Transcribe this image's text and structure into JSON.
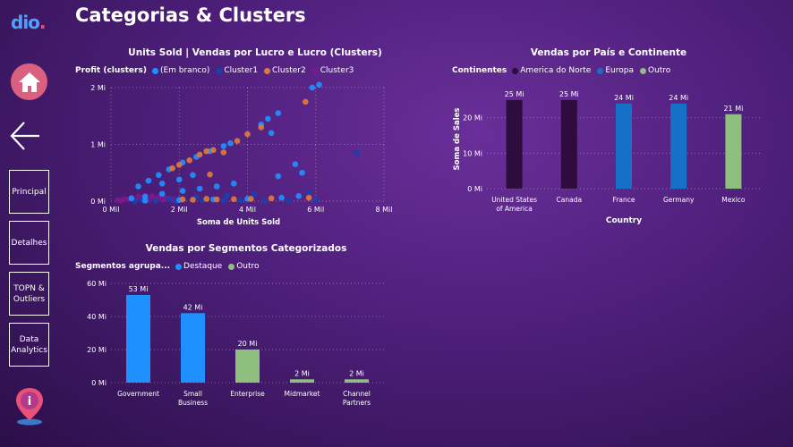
{
  "app": {
    "logo_text": "dio",
    "page_title": "Categorias & Clusters",
    "nav": [
      {
        "label": "Principal"
      },
      {
        "label": "Detalhes"
      },
      {
        "label": "TOPN & Outliers"
      },
      {
        "label": "Data Analytics"
      }
    ]
  },
  "colors": {
    "em_branco": "#1e90ff",
    "cluster1": "#1a3fb0",
    "cluster2": "#e07a3a",
    "cluster3": "#7a1a8a",
    "america_do_norte": "#2e0c3e",
    "europa": "#1670c8",
    "outro": "#8fbf7f",
    "destaque": "#1e90ff"
  },
  "chart_data": [
    {
      "id": "scatter",
      "type": "scatter",
      "title": "Units Sold | Vendas por Lucro e Lucro (Clusters)",
      "legend_title": "Profit (clusters)",
      "legend": [
        "(Em branco)",
        "Cluster1",
        "Cluster2",
        "Cluster3"
      ],
      "xlabel": "Soma de Units Sold",
      "ylabel": "",
      "x_ticks": [
        "0 Mil",
        "2 Mil",
        "4 Mil",
        "6 Mil",
        "8 Mil"
      ],
      "y_ticks": [
        "0 Mi",
        "1 Mi",
        "2 Mi"
      ],
      "xlim": [
        0,
        8000
      ],
      "ylim": [
        0,
        2000000
      ],
      "series": [
        {
          "name": "(Em branco)",
          "points": [
            [
              5900,
              2000000
            ],
            [
              6100,
              2050000
            ],
            [
              4900,
              1550000
            ],
            [
              4600,
              1450000
            ],
            [
              4400,
              1350000
            ],
            [
              3500,
              1020000
            ],
            [
              3300,
              970000
            ],
            [
              2900,
              880000
            ],
            [
              2500,
              780000
            ],
            [
              2100,
              680000
            ],
            [
              1700,
              560000
            ],
            [
              1400,
              460000
            ],
            [
              1100,
              360000
            ],
            [
              800,
              260000
            ],
            [
              5400,
              650000
            ],
            [
              5600,
              500000
            ],
            [
              4900,
              440000
            ],
            [
              3600,
              310000
            ],
            [
              3100,
              260000
            ],
            [
              2600,
              220000
            ],
            [
              2100,
              180000
            ],
            [
              1500,
              130000
            ],
            [
              1000,
              80000
            ],
            [
              600,
              50000
            ],
            [
              5500,
              90000
            ],
            [
              5000,
              60000
            ],
            [
              4000,
              40000
            ],
            [
              3000,
              30000
            ],
            [
              2000,
              20000
            ],
            [
              1000,
              10000
            ],
            [
              4700,
              1200000
            ],
            [
              2000,
              380000
            ],
            [
              2400,
              460000
            ],
            [
              1500,
              310000
            ]
          ]
        },
        {
          "name": "Cluster1",
          "points": [
            [
              7200,
              850000
            ],
            [
              6000,
              20000
            ],
            [
              5200,
              15000
            ],
            [
              4500,
              10000
            ],
            [
              3800,
              8000
            ],
            [
              3300,
              12000
            ],
            [
              2700,
              9000
            ],
            [
              1900,
              6000
            ],
            [
              1300,
              4000
            ],
            [
              700,
              2000
            ],
            [
              5800,
              150000
            ],
            [
              4200,
              120000
            ],
            [
              3400,
              95000
            ],
            [
              2500,
              70000
            ],
            [
              1700,
              40000
            ],
            [
              900,
              20000
            ]
          ]
        },
        {
          "name": "Cluster2",
          "points": [
            [
              5700,
              1750000
            ],
            [
              4000,
              1180000
            ],
            [
              3700,
              1060000
            ],
            [
              3000,
              900000
            ],
            [
              2800,
              880000
            ],
            [
              2600,
              820000
            ],
            [
              2300,
              720000
            ],
            [
              2000,
              640000
            ],
            [
              1800,
              580000
            ],
            [
              4400,
              1300000
            ],
            [
              3300,
              860000
            ],
            [
              2900,
              470000
            ],
            [
              5800,
              60000
            ],
            [
              4700,
              50000
            ],
            [
              4100,
              40000
            ],
            [
              3600,
              35000
            ],
            [
              3100,
              30000
            ],
            [
              2400,
              25000
            ],
            [
              2100,
              30000
            ],
            [
              2800,
              40000
            ]
          ]
        },
        {
          "name": "Cluster3",
          "points": [
            [
              200,
              20000
            ],
            [
              400,
              40000
            ],
            [
              600,
              60000
            ],
            [
              800,
              80000
            ],
            [
              1000,
              100000
            ],
            [
              1200,
              90000
            ],
            [
              1400,
              70000
            ],
            [
              1600,
              50000
            ],
            [
              1800,
              40000
            ],
            [
              2000,
              30000
            ],
            [
              300,
              10000
            ],
            [
              700,
              15000
            ],
            [
              1100,
              20000
            ],
            [
              1500,
              25000
            ],
            [
              1900,
              12000
            ],
            [
              500,
              30000
            ],
            [
              900,
              45000
            ],
            [
              1300,
              35000
            ]
          ]
        }
      ]
    },
    {
      "id": "country",
      "type": "bar",
      "title": "Vendas por País e Continente",
      "legend_title": "Continentes",
      "legend": [
        "America do Norte",
        "Europa",
        "Outro"
      ],
      "xlabel": "Country",
      "ylabel": "Soma de Sales",
      "categories": [
        "United States of America",
        "Canada",
        "France",
        "Germany",
        "Mexico"
      ],
      "values": [
        25,
        25,
        24,
        24,
        21
      ],
      "value_labels": [
        "25 Mi",
        "25 Mi",
        "24 Mi",
        "24 Mi",
        "21 Mi"
      ],
      "group": [
        "America do Norte",
        "America do Norte",
        "Europa",
        "Europa",
        "Outro"
      ],
      "y_ticks": [
        "0 Mi",
        "10 Mi",
        "20 Mi"
      ],
      "ylim": [
        0,
        28
      ],
      "unit": "Mi"
    },
    {
      "id": "segment",
      "type": "bar",
      "title": "Vendas por Segmentos Categorizados",
      "legend_title": "Segmentos agrupa...",
      "legend": [
        "Destaque",
        "Outro"
      ],
      "xlabel": "",
      "ylabel": "",
      "categories": [
        "Government",
        "Small Business",
        "Enterprise",
        "Midmarket",
        "Channel Partners"
      ],
      "values": [
        53,
        42,
        20,
        2,
        2
      ],
      "value_labels": [
        "53 Mi",
        "42 Mi",
        "20 Mi",
        "2 Mi",
        "2 Mi"
      ],
      "group": [
        "Destaque",
        "Destaque",
        "Outro",
        "Outro",
        "Outro"
      ],
      "y_ticks": [
        "0 Mi",
        "20 Mi",
        "40 Mi",
        "60 Mi"
      ],
      "ylim": [
        0,
        60
      ],
      "unit": "Mi"
    }
  ]
}
